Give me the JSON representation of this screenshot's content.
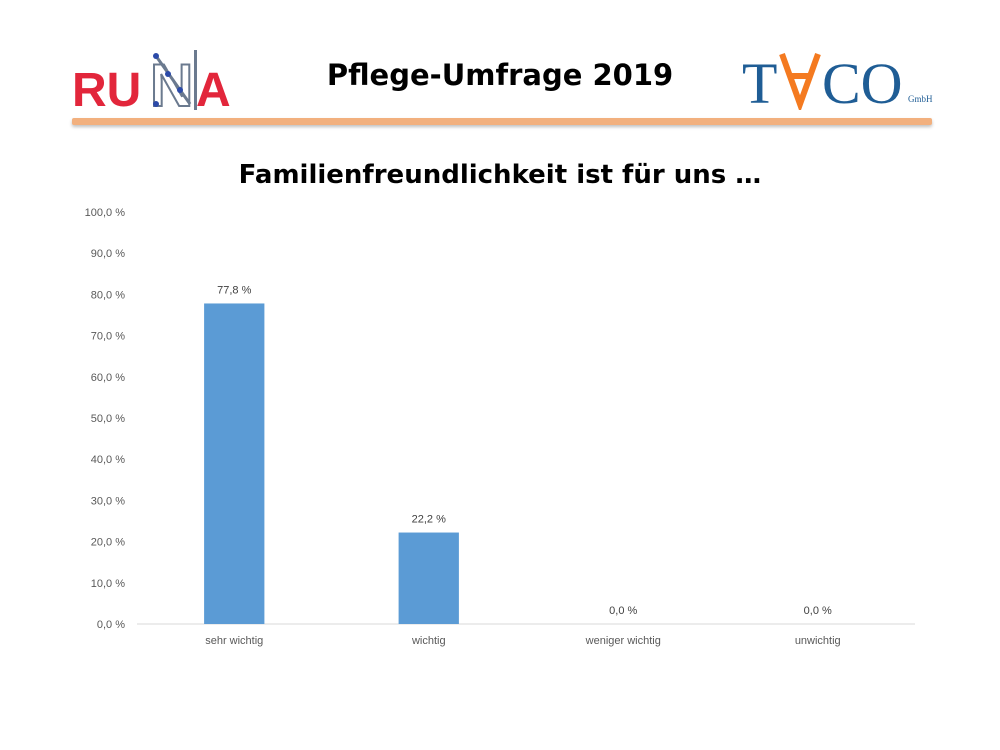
{
  "header": {
    "title": "Pflege-Umfrage 2019",
    "logo_left": {
      "text": "RUNA",
      "icon": "runa-logo"
    },
    "logo_right": {
      "text": "TACO",
      "suffix": "GmbH",
      "icon": "taco-logo"
    }
  },
  "colors": {
    "bar": "#5b9bd5",
    "accent_rule": "#f2b07e",
    "logo_red": "#e2263b",
    "logo_blue": "#1f5d95",
    "logo_orange": "#f47a20"
  },
  "chart_data": {
    "type": "bar",
    "title": "Familienfreundlichkeit ist für uns …",
    "categories": [
      "sehr wichtig",
      "wichtig",
      "weniger wichtig",
      "unwichtig"
    ],
    "values": [
      77.8,
      22.2,
      0.0,
      0.0
    ],
    "data_labels": [
      "77,8 %",
      "22,2 %",
      "0,0 %",
      "0,0 %"
    ],
    "y_ticks": [
      "0,0 %",
      "10,0 %",
      "20,0 %",
      "30,0 %",
      "40,0 %",
      "50,0 %",
      "60,0 %",
      "70,0 %",
      "80,0 %",
      "90,0 %",
      "100,0 %"
    ],
    "ylim": [
      0,
      100
    ],
    "xlabel": "",
    "ylabel": "",
    "grid": false,
    "legend": "none"
  }
}
